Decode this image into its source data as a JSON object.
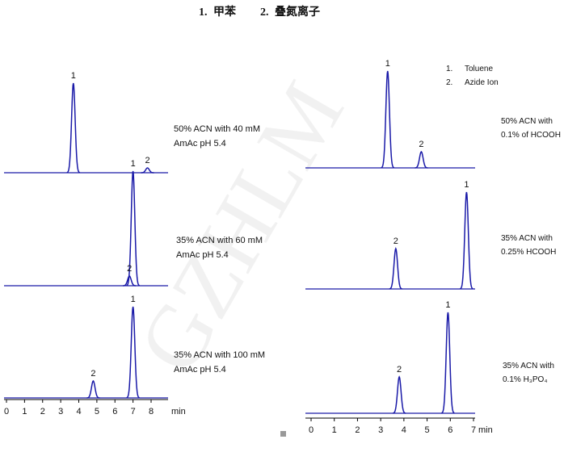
{
  "title": {
    "items": [
      "1.",
      "甲苯",
      "2.",
      "叠氮离子"
    ]
  },
  "watermark": "GZHLM",
  "panels": [
    {
      "xticks": [
        0,
        1,
        2,
        3,
        4,
        5,
        6,
        7,
        8
      ],
      "xlim": [
        0,
        8
      ],
      "unit": "min",
      "traces": [
        {
          "condition": [
            "50% ACN with 40 mM",
            "AmAc pH 5.4"
          ],
          "peaks": [
            {
              "label": "1",
              "time": 3.7,
              "height": 111
            },
            {
              "label": "2",
              "time": 7.8,
              "height": 6
            }
          ]
        },
        {
          "condition": [
            "35% ACN with 60 mM",
            "AmAc pH 5.4"
          ],
          "peaks": [
            {
              "label": "1",
              "time": 7.0,
              "height": 142
            },
            {
              "label": "2",
              "time": 6.8,
              "height": 12
            }
          ]
        },
        {
          "condition": [
            "35% ACN with 100 mM",
            "AmAc pH 5.4"
          ],
          "peaks": [
            {
              "label": "1",
              "time": 7.0,
              "height": 113
            },
            {
              "label": "2",
              "time": 4.8,
              "height": 21
            }
          ]
        }
      ]
    },
    {
      "xticks": [
        0,
        1,
        2,
        3,
        4,
        5,
        6,
        7
      ],
      "xlim": [
        0,
        7
      ],
      "unit": "min",
      "legend": [
        [
          "1.",
          "Toluene"
        ],
        [
          "2.",
          "Azide Ion"
        ]
      ],
      "traces": [
        {
          "condition": [
            "50% ACN with",
            "0.1% of HCOOH"
          ],
          "peaks": [
            {
              "label": "1",
              "time": 3.3,
              "height": 120
            },
            {
              "label": "2",
              "time": 4.75,
              "height": 20
            }
          ]
        },
        {
          "condition": [
            "35% ACN with",
            "0.25% HCOOH"
          ],
          "peaks": [
            {
              "label": "1",
              "time": 6.7,
              "height": 120
            },
            {
              "label": "2",
              "time": 3.65,
              "height": 50
            }
          ]
        },
        {
          "condition": [
            "35% ACN with",
            "0.1% H₃PO₄"
          ],
          "peaks": [
            {
              "label": "1",
              "time": 5.9,
              "height": 125
            },
            {
              "label": "2",
              "time": 3.8,
              "height": 45
            }
          ]
        }
      ]
    }
  ]
}
